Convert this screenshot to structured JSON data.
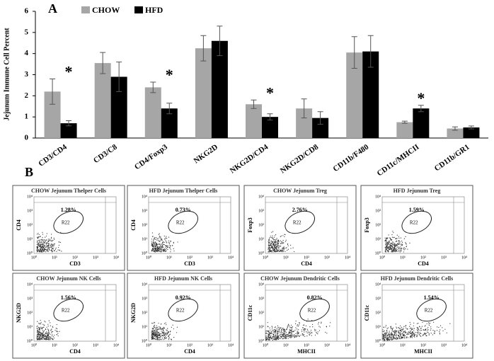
{
  "chart_data": {
    "type": "bar",
    "panel_label": "A",
    "y_label": "Jejunum Immune Cell Percent",
    "categories": [
      "CD3/CD4",
      "CD3/C8",
      "CD4/Foxp3",
      "NKG2D",
      "NKG2D/CD4",
      "NKG2D/CD8",
      "CD11b/F480",
      "CD11c/MHCII",
      "CD11b/GR1"
    ],
    "series": [
      {
        "name": "CHOW",
        "color": "#a6a6a6",
        "values": [
          2.2,
          3.55,
          2.4,
          4.25,
          1.6,
          1.4,
          4.05,
          0.75,
          0.45
        ],
        "errors": [
          0.6,
          0.5,
          0.25,
          0.6,
          0.2,
          0.45,
          0.75,
          0.05,
          0.08
        ]
      },
      {
        "name": "HFD",
        "color": "#000000",
        "values": [
          0.7,
          2.9,
          1.4,
          4.6,
          1.0,
          0.95,
          4.1,
          1.4,
          0.5
        ],
        "errors": [
          0.12,
          0.7,
          0.25,
          0.7,
          0.15,
          0.3,
          0.75,
          0.15,
          0.07
        ]
      }
    ],
    "significance": [
      "*",
      null,
      "*",
      null,
      "*",
      null,
      null,
      "*",
      null
    ],
    "ylim": [
      0,
      6
    ],
    "yticks": [
      0,
      1,
      2,
      3,
      4,
      5,
      6
    ],
    "grid": false,
    "legend": "top"
  },
  "flow_panel": {
    "label": "B",
    "log_ticks": [
      "10⁰",
      "10¹",
      "10²",
      "10³",
      "10⁴"
    ],
    "plots": [
      {
        "title": "CHOW Jejunum Thelper Cells",
        "percent": "1.28%",
        "gate": "R22",
        "x_label": "CD3",
        "y_label": "CD4"
      },
      {
        "title": "HFD Jejunum Thelper Cells",
        "percent": "0.73%",
        "gate": "R22",
        "x_label": "CD3",
        "y_label": "CD4"
      },
      {
        "title": "CHOW Jejunum Treg",
        "percent": "2.76%",
        "gate": "R22",
        "x_label": "CD4",
        "y_label": "Foxp3"
      },
      {
        "title": "HFD Jejunum Treg",
        "percent": "1.59%",
        "gate": "R22",
        "x_label": "CD4",
        "y_label": "Foxp3"
      },
      {
        "title": "CHOW Jejunum NK Cells",
        "percent": "1.56%",
        "gate": "R22",
        "x_label": "CD4",
        "y_label": "NKG2D"
      },
      {
        "title": "HFD Jejunum NK Cells",
        "percent": "0.92%",
        "gate": "R22",
        "x_label": "CD4",
        "y_label": "NKG2D"
      },
      {
        "title": "CHOW Jejunum Dendritic Cells",
        "percent": "0.82%",
        "gate": "R22",
        "x_label": "MHCII",
        "y_label": "CD11c"
      },
      {
        "title": "HFD Jejunum Dendritic Cells",
        "percent": "1.54%",
        "gate": "R22",
        "x_label": "MHCII",
        "y_label": "CD11c"
      }
    ]
  }
}
